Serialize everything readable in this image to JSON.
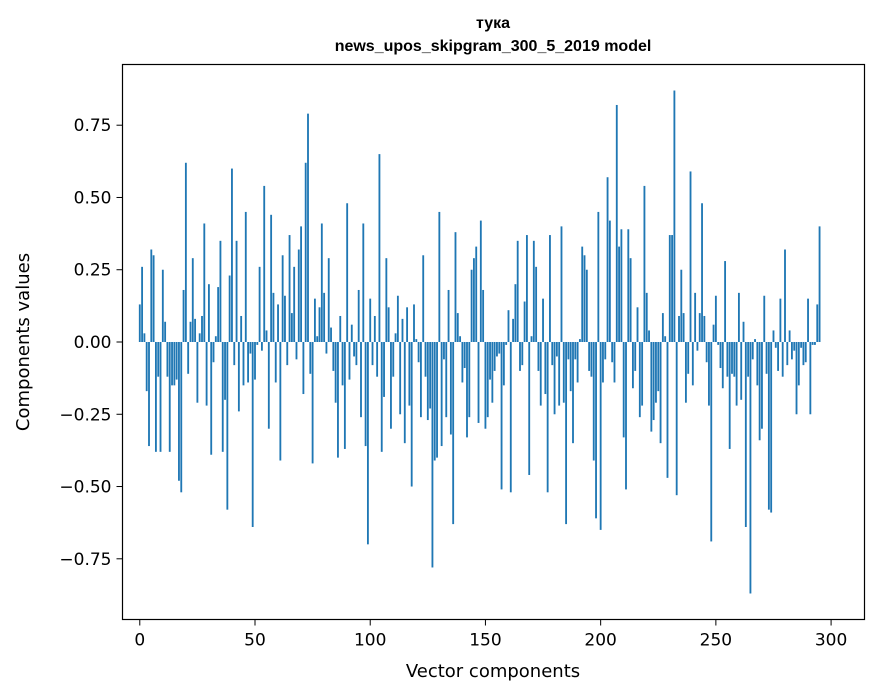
{
  "chart_data": {
    "type": "bar",
    "title": "тука",
    "subtitle": "news_upos_skipgram_300_5_2019 model",
    "xlabel": "Vector components",
    "ylabel": "Components values",
    "xlim": [
      -7.5,
      314.5
    ],
    "ylim": [
      -0.96,
      0.96
    ],
    "xticks": [
      0,
      50,
      100,
      150,
      200,
      250,
      300
    ],
    "yticks": [
      -0.75,
      -0.5,
      -0.25,
      0.0,
      0.25,
      0.5,
      0.75
    ],
    "ytick_labels": [
      "−0.75",
      "−0.50",
      "−0.25",
      "0.00",
      "0.25",
      "0.50",
      "0.75"
    ],
    "bar_color": "#1f77b4",
    "values": [
      0.13,
      0.26,
      0.03,
      -0.17,
      -0.36,
      0.32,
      0.3,
      -0.38,
      -0.12,
      -0.38,
      0.25,
      0.07,
      -0.12,
      -0.38,
      -0.15,
      -0.15,
      -0.13,
      -0.48,
      -0.52,
      0.18,
      0.62,
      -0.11,
      0.07,
      0.29,
      0.08,
      -0.21,
      0.03,
      0.09,
      0.41,
      -0.22,
      0.2,
      -0.39,
      -0.07,
      0.02,
      0.19,
      0.35,
      -0.38,
      -0.2,
      -0.58,
      0.23,
      0.6,
      -0.08,
      0.35,
      -0.24,
      0.09,
      -0.15,
      0.45,
      -0.14,
      -0.04,
      -0.64,
      -0.13,
      -0.01,
      0.26,
      -0.03,
      0.54,
      0.04,
      -0.3,
      0.44,
      0.17,
      -0.14,
      0.13,
      -0.41,
      0.3,
      0.16,
      -0.08,
      0.37,
      0.1,
      0.26,
      -0.06,
      0.32,
      0.4,
      -0.18,
      0.62,
      0.79,
      -0.11,
      -0.42,
      0.15,
      0.02,
      0.12,
      0.41,
      0.17,
      -0.04,
      0.29,
      0.05,
      -0.1,
      -0.21,
      -0.4,
      0.09,
      -0.15,
      -0.37,
      0.48,
      -0.13,
      0.06,
      -0.05,
      -0.08,
      0.18,
      -0.26,
      0.41,
      -0.36,
      -0.7,
      0.15,
      -0.08,
      0.09,
      -0.12,
      0.65,
      -0.38,
      -0.19,
      0.29,
      0.12,
      -0.3,
      -0.12,
      0.03,
      0.16,
      -0.25,
      0.08,
      -0.35,
      0.12,
      -0.22,
      -0.5,
      0.13,
      0.01,
      -0.07,
      -0.26,
      0.3,
      -0.12,
      -0.27,
      -0.23,
      -0.78,
      -0.41,
      -0.4,
      0.45,
      -0.36,
      -0.06,
      -0.26,
      0.18,
      -0.32,
      -0.63,
      0.38,
      0.1,
      0.02,
      -0.14,
      -0.09,
      -0.33,
      -0.26,
      0.25,
      0.29,
      0.33,
      -0.28,
      0.42,
      0.18,
      -0.3,
      -0.26,
      -0.13,
      -0.21,
      -0.1,
      -0.05,
      -0.04,
      -0.51,
      -0.15,
      -0.01,
      0.11,
      -0.52,
      0.08,
      0.2,
      0.35,
      -0.1,
      -0.08,
      0.14,
      0.37,
      -0.46,
      0.02,
      0.35,
      0.26,
      -0.1,
      -0.22,
      0.15,
      -0.18,
      -0.52,
      0.37,
      -0.08,
      -0.25,
      -0.05,
      -0.22,
      0.4,
      -0.21,
      -0.63,
      -0.06,
      -0.17,
      -0.35,
      -0.06,
      -0.14,
      0.01,
      0.33,
      0.3,
      0.25,
      -0.1,
      -0.12,
      -0.41,
      -0.61,
      0.45,
      -0.65,
      -0.14,
      -0.06,
      0.57,
      0.42,
      -0.07,
      -0.14,
      0.82,
      0.33,
      0.39,
      -0.33,
      -0.51,
      0.39,
      0.29,
      -0.16,
      -0.1,
      0.12,
      -0.26,
      -0.22,
      0.54,
      0.17,
      0.04,
      -0.31,
      -0.27,
      -0.21,
      -0.17,
      -0.35,
      0.1,
      0.02,
      -0.47,
      0.37,
      0.37,
      0.87,
      -0.53,
      0.09,
      0.25,
      0.1,
      -0.21,
      -0.11,
      0.59,
      -0.15,
      0.17,
      -0.03,
      0.1,
      0.48,
      0.09,
      -0.07,
      -0.22,
      -0.69,
      0.06,
      0.16,
      -0.01,
      -0.09,
      -0.16,
      0.28,
      -0.12,
      -0.37,
      -0.11,
      -0.12,
      -0.22,
      0.17,
      -0.2,
      0.07,
      -0.64,
      -0.12,
      -0.87,
      -0.06,
      0.01,
      -0.15,
      -0.34,
      -0.3,
      0.16,
      -0.11,
      -0.58,
      -0.59,
      0.04,
      -0.02,
      -0.1,
      0.15,
      -0.12,
      0.32,
      -0.08,
      0.04,
      -0.06,
      -0.03,
      -0.25,
      -0.15,
      -0.02,
      -0.08,
      -0.07,
      0.15,
      -0.25,
      -0.01,
      -0.01,
      0.13,
      0.4
    ]
  }
}
